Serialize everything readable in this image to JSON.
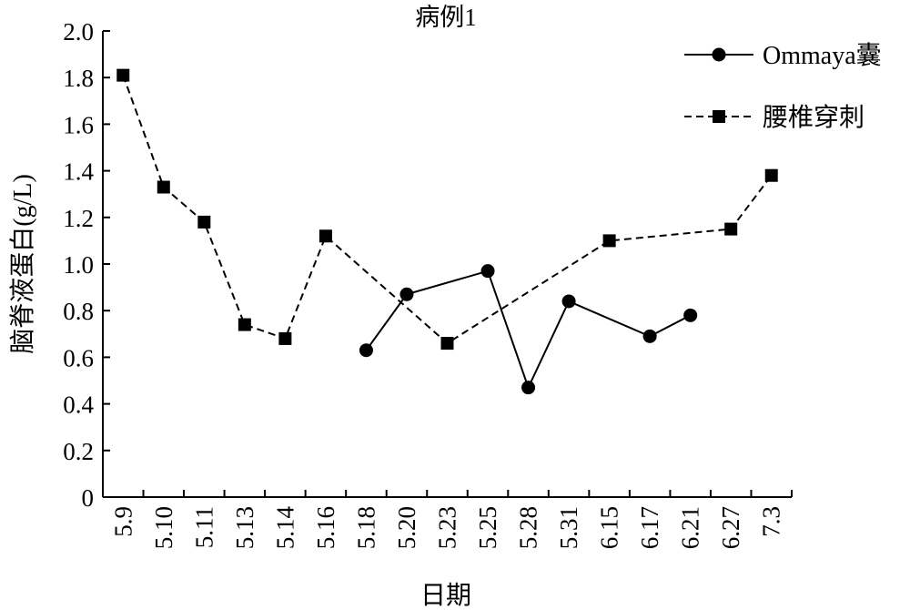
{
  "chart_data": {
    "type": "line",
    "title": "病例1",
    "xlabel": "日期",
    "ylabel": "脑脊液蛋白(g/L)",
    "categories": [
      "5.9",
      "5.10",
      "5.11",
      "5.13",
      "5.14",
      "5.16",
      "5.18",
      "5.20",
      "5.23",
      "5.25",
      "5.28",
      "5.31",
      "6.15",
      "6.17",
      "6.21",
      "6.27",
      "7.3"
    ],
    "ylim": [
      0,
      2.0
    ],
    "yticks": [
      "0",
      "0.2",
      "0.4",
      "0.6",
      "0.8",
      "1.0",
      "1.2",
      "1.4",
      "1.6",
      "1.8",
      "2.0"
    ],
    "grid": false,
    "legend_position": "top-right",
    "series": [
      {
        "name": "Ommaya囊",
        "marker": "circle",
        "line_style": "solid",
        "color": "#000000",
        "values": [
          null,
          null,
          null,
          null,
          null,
          null,
          0.63,
          0.87,
          null,
          0.97,
          0.47,
          0.84,
          null,
          0.69,
          0.78,
          null,
          null
        ]
      },
      {
        "name": "腰椎穿刺",
        "marker": "square",
        "line_style": "dashed",
        "color": "#000000",
        "values": [
          1.81,
          1.33,
          1.18,
          0.74,
          0.68,
          1.12,
          null,
          null,
          0.66,
          null,
          null,
          null,
          1.1,
          null,
          null,
          1.15,
          1.38
        ]
      }
    ]
  }
}
